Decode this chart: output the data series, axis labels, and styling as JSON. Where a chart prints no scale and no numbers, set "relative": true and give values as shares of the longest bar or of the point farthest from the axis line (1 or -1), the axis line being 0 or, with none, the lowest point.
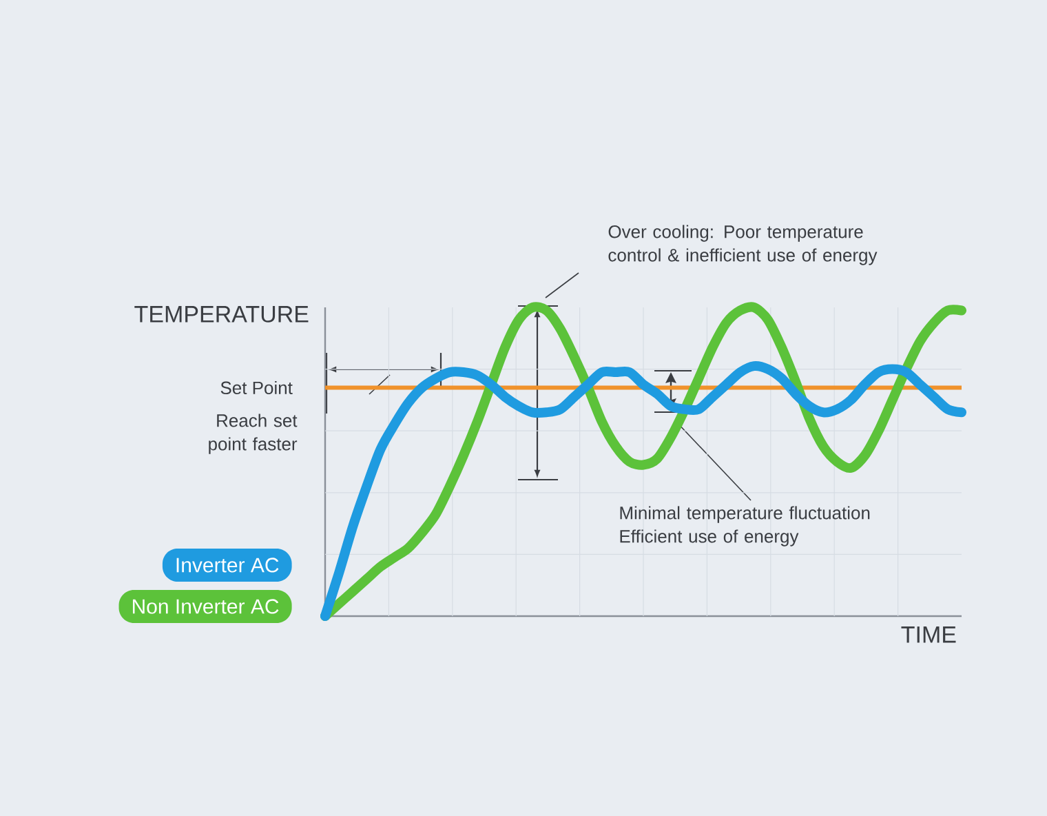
{
  "chart_data": {
    "type": "line",
    "relative": true,
    "xlabel": "TIME",
    "ylabel": "TEMPERATURE",
    "categories": [
      null,
      null,
      null,
      null,
      null,
      null,
      null,
      null,
      null,
      null,
      null,
      null,
      null,
      null,
      null,
      null,
      null,
      null,
      null,
      null,
      null,
      null,
      null,
      null,
      null,
      null,
      null,
      null,
      null,
      null,
      null,
      null,
      null,
      null,
      null,
      null,
      null,
      null,
      null,
      null,
      null,
      null,
      null,
      null,
      null,
      null,
      null
    ],
    "series": [
      {
        "name": "Non Inverter AC",
        "color": "#5cc23a",
        "values": [
          0,
          0.04,
          0.08,
          0.12,
          0.16,
          0.19,
          0.22,
          0.27,
          0.33,
          0.42,
          0.52,
          0.63,
          0.75,
          0.87,
          0.96,
          1.0,
          0.99,
          0.93,
          0.84,
          0.74,
          0.63,
          0.55,
          0.5,
          0.49,
          0.51,
          0.58,
          0.67,
          0.77,
          0.87,
          0.95,
          0.99,
          1.0,
          0.96,
          0.87,
          0.76,
          0.64,
          0.55,
          0.5,
          0.48,
          0.52,
          0.6,
          0.7,
          0.8,
          0.89,
          0.95,
          0.99,
          0.99
        ]
      },
      {
        "name": "Inverter AC",
        "color": "#1f9be0",
        "values": [
          0,
          0.14,
          0.29,
          0.42,
          0.54,
          0.62,
          0.69,
          0.74,
          0.77,
          0.79,
          0.79,
          0.78,
          0.75,
          0.71,
          0.68,
          0.66,
          0.66,
          0.67,
          0.71,
          0.75,
          0.79,
          0.79,
          0.79,
          0.75,
          0.72,
          0.68,
          0.67,
          0.67,
          0.71,
          0.75,
          0.79,
          0.81,
          0.8,
          0.77,
          0.72,
          0.68,
          0.66,
          0.67,
          0.7,
          0.75,
          0.79,
          0.8,
          0.79,
          0.75,
          0.71,
          0.67,
          0.66
        ]
      }
    ],
    "ref_lines": [
      {
        "axis": "y",
        "value": 0.74,
        "label": "Set Point",
        "color": "#f0922b"
      }
    ],
    "annotations": [
      "Over cooling: Poor temperature control & inefficient use of energy",
      "Reach set point faster",
      "Minimal temperature fluctuation Efficient use of energy"
    ],
    "grid": true,
    "legend": "left",
    "line_style": "solid",
    "marker": "none"
  }
}
